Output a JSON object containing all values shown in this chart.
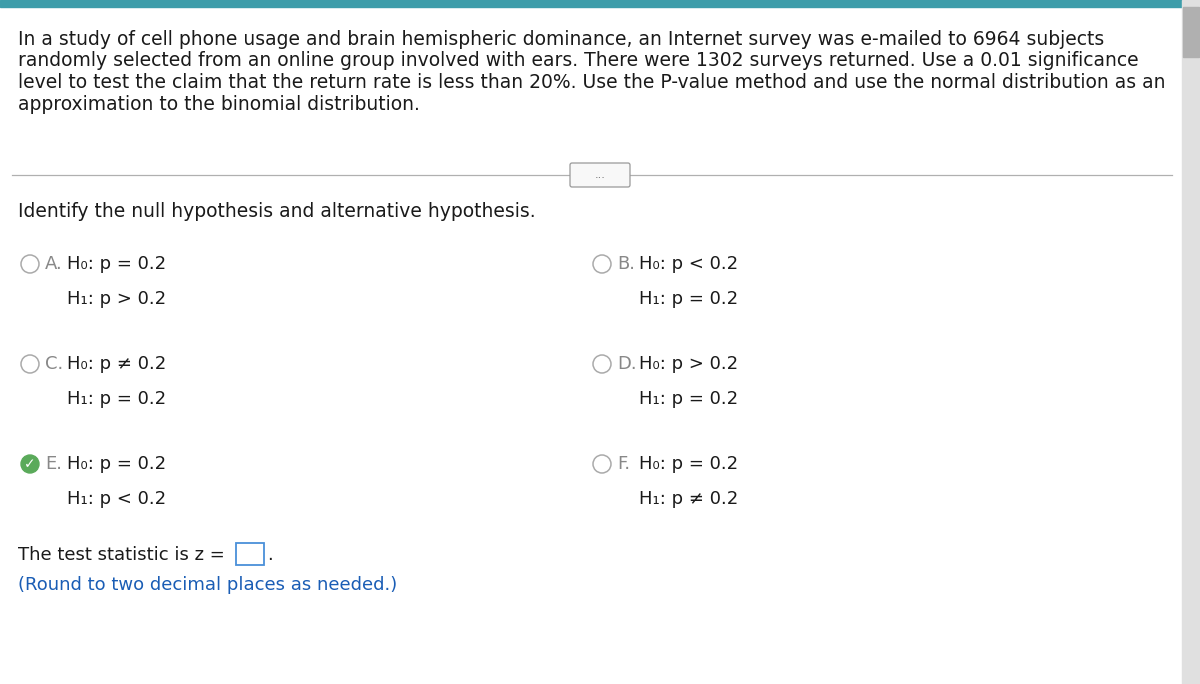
{
  "bg_color": "#ffffff",
  "header_bar_color": "#3d9daa",
  "scrollbar_bg": "#e0e0e0",
  "scrollbar_thumb": "#b0b0b0",
  "paragraph_lines": [
    "In a study of cell phone usage and brain hemispheric dominance, an Internet survey was e-mailed to 6964 subjects",
    "randomly selected from an online group involved with ears. There were 1302 surveys returned. Use a 0.01 significance",
    "level to test the claim that the return rate is less than 20%. Use the P-value method and use the normal distribution as an",
    "approximation to the binomial distribution."
  ],
  "section_title": "Identify the null hypothesis and alternative hypothesis.",
  "options": [
    {
      "label": "A.",
      "h0": "H₀: p = 0.2",
      "h1": "H₁: p > 0.2",
      "selected": false,
      "col": 0,
      "row": 0
    },
    {
      "label": "B.",
      "h0": "H₀: p < 0.2",
      "h1": "H₁: p = 0.2",
      "selected": false,
      "col": 1,
      "row": 0
    },
    {
      "label": "C.",
      "h0": "H₀: p ≠ 0.2",
      "h1": "H₁: p = 0.2",
      "selected": false,
      "col": 0,
      "row": 1
    },
    {
      "label": "D.",
      "h0": "H₀: p > 0.2",
      "h1": "H₁: p = 0.2",
      "selected": false,
      "col": 1,
      "row": 1
    },
    {
      "label": "E.",
      "h0": "H₀: p = 0.2",
      "h1": "H₁: p < 0.2",
      "selected": true,
      "col": 0,
      "row": 2
    },
    {
      "label": "F.",
      "h0": "H₀: p = 0.2",
      "h1": "H₁: p ≠ 0.2",
      "selected": false,
      "col": 1,
      "row": 2
    }
  ],
  "test_stat_line": "The test statistic is z =",
  "round_note": "(Round to two decimal places as needed.)",
  "round_color": "#1a5db5",
  "text_color": "#1a1a1a",
  "label_color": "#888888",
  "circle_color": "#aaaaaa",
  "check_color": "#5aaa5a",
  "para_fontsize": 13.5,
  "section_fontsize": 13.5,
  "option_fontsize": 13.0,
  "note_fontsize": 13.0
}
